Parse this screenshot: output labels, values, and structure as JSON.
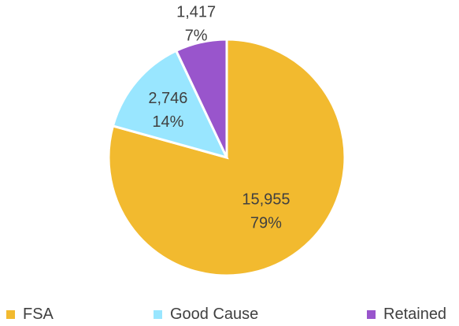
{
  "chart_data": {
    "type": "pie",
    "title": "",
    "legend_position": "bottom",
    "slices": [
      {
        "name": "FSA",
        "value": 15955,
        "value_label": "15,955",
        "percent_label": "79%",
        "color": "#F2BA2F"
      },
      {
        "name": "Good Cause",
        "value": 2746,
        "value_label": "2,746",
        "percent_label": "14%",
        "color": "#99E6FF"
      },
      {
        "name": "Retained",
        "value": 1417,
        "value_label": "1,417",
        "percent_label": "7%",
        "color": "#9955CC"
      }
    ]
  },
  "legend": {
    "items": [
      {
        "label": "FSA",
        "color": "#F2BA2F"
      },
      {
        "label": "Good Cause",
        "color": "#99E6FF"
      },
      {
        "label": "Retained",
        "color": "#9955CC"
      }
    ]
  }
}
